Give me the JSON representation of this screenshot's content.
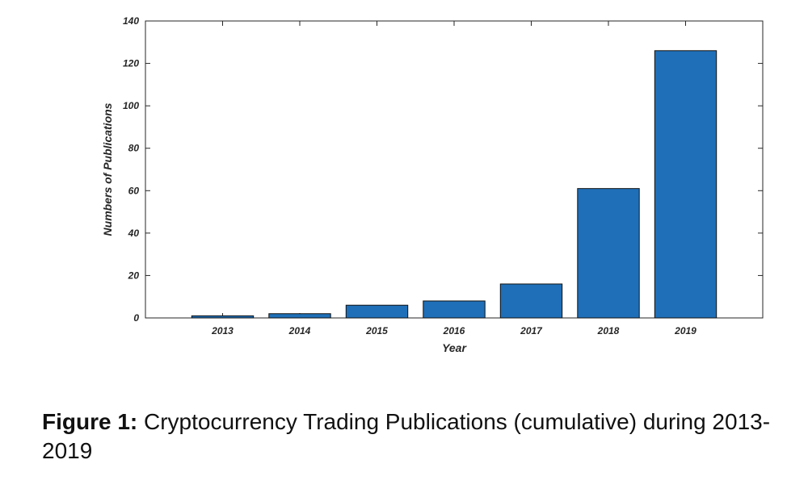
{
  "chart_data": {
    "type": "bar",
    "categories": [
      "2013",
      "2014",
      "2015",
      "2016",
      "2017",
      "2018",
      "2019"
    ],
    "values": [
      1,
      2,
      6,
      8,
      16,
      61,
      126
    ],
    "xlabel": "Year",
    "ylabel": "Numbers of Publications",
    "ylim": [
      0,
      140
    ],
    "yticks": [
      0,
      20,
      40,
      60,
      80,
      100,
      120,
      140
    ],
    "grid": false,
    "legend": "none",
    "bar_color": "#1f6fb8"
  },
  "caption": {
    "label": "Figure 1:",
    "text": "Cryptocurrency Trading Publications (cumulative) during 2013-2019"
  }
}
